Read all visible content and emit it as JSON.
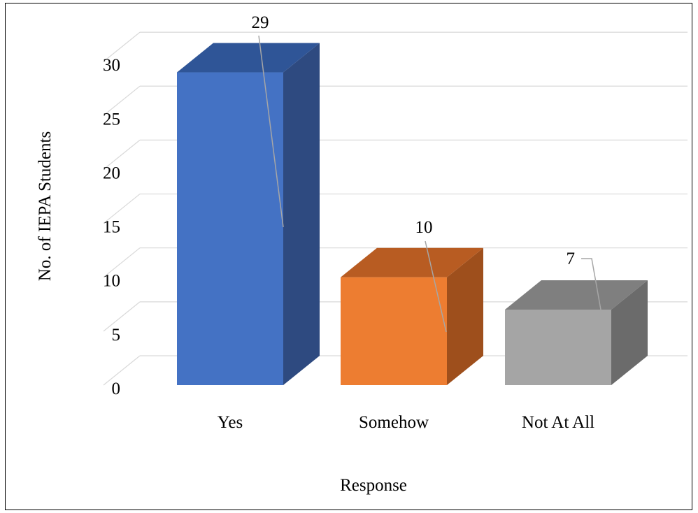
{
  "chart_data": {
    "type": "bar",
    "style": "3d-column",
    "categories": [
      "Yes",
      "Somehow",
      "Not At All"
    ],
    "values": [
      29,
      10,
      7
    ],
    "data_labels": [
      "29",
      "10",
      "7"
    ],
    "title": "",
    "xlabel": "Response",
    "ylabel": "No. of IEPA Students",
    "ylim": [
      0,
      30
    ],
    "yticks": [
      0,
      5,
      10,
      15,
      20,
      25,
      30
    ],
    "grid": true,
    "legend": "none",
    "colors": [
      {
        "front": "#4472c4",
        "top": "#2f5597",
        "side": "#2e4a80"
      },
      {
        "front": "#ed7d31",
        "top": "#b85c22",
        "side": "#9e4f1c"
      },
      {
        "front": "#a5a5a5",
        "top": "#7f7f7f",
        "side": "#6b6b6b"
      }
    ],
    "gridline_color": "#d9d9d9",
    "leader_line_color": "#a6a6a6"
  }
}
